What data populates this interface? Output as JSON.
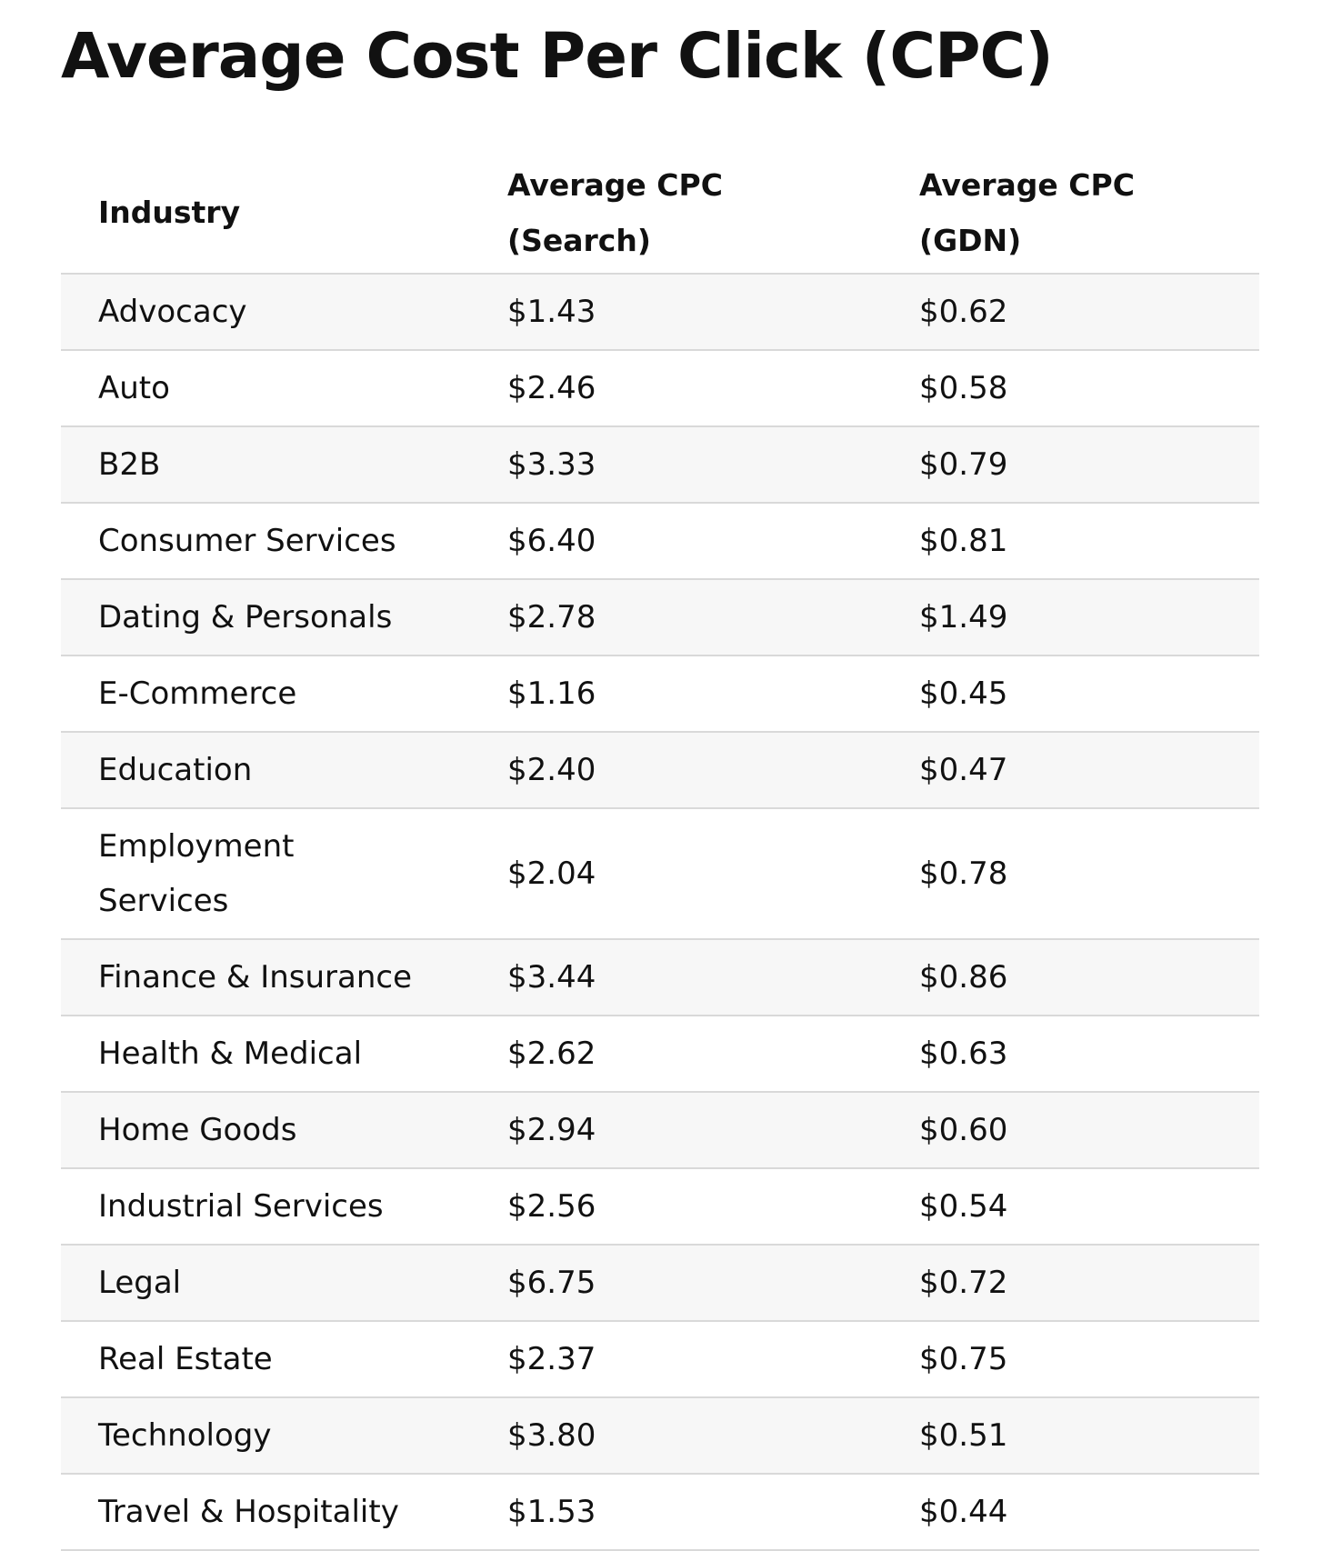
{
  "title": "Average Cost Per Click (CPC)",
  "table": {
    "headers": {
      "industry": "Industry",
      "search_line1": "Average CPC",
      "search_line2": "(Search)",
      "gdn_line1": "Average CPC",
      "gdn_line2": "(GDN)"
    },
    "rows": [
      {
        "industry": "Advocacy",
        "search": "$1.43",
        "gdn": "$0.62"
      },
      {
        "industry": "Auto",
        "search": "$2.46",
        "gdn": "$0.58"
      },
      {
        "industry": "B2B",
        "search": "$3.33",
        "gdn": "$0.79"
      },
      {
        "industry": "Consumer Services",
        "search": "$6.40",
        "gdn": "$0.81"
      },
      {
        "industry": "Dating & Personals",
        "search": "$2.78",
        "gdn": "$1.49"
      },
      {
        "industry": "E-Commerce",
        "search": "$1.16",
        "gdn": "$0.45"
      },
      {
        "industry": "Education",
        "search": "$2.40",
        "gdn": "$0.47"
      },
      {
        "industry": "Employment Services",
        "search": "$2.04",
        "gdn": "$0.78"
      },
      {
        "industry": "Finance & Insurance",
        "search": "$3.44",
        "gdn": "$0.86"
      },
      {
        "industry": "Health & Medical",
        "search": "$2.62",
        "gdn": "$0.63"
      },
      {
        "industry": "Home Goods",
        "search": "$2.94",
        "gdn": "$0.60"
      },
      {
        "industry": "Industrial Services",
        "search": "$2.56",
        "gdn": "$0.54"
      },
      {
        "industry": "Legal",
        "search": "$6.75",
        "gdn": "$0.72"
      },
      {
        "industry": "Real Estate",
        "search": "$2.37",
        "gdn": "$0.75"
      },
      {
        "industry": "Technology",
        "search": "$3.80",
        "gdn": "$0.51"
      },
      {
        "industry": "Travel & Hospitality",
        "search": "$1.53",
        "gdn": "$0.44"
      }
    ]
  }
}
